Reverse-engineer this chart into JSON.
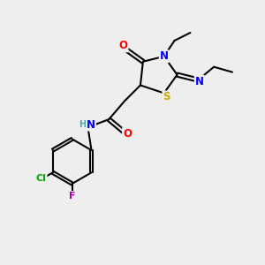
{
  "bg_color": "#eeeeee",
  "atom_colors": {
    "C": "#000000",
    "N": "#0000ff",
    "O": "#ff0000",
    "S": "#ccaa00",
    "Cl": "#00aa00",
    "F": "#aa00aa",
    "H": "#44aaaa"
  },
  "bond_color": "#000000",
  "lw": 1.5
}
